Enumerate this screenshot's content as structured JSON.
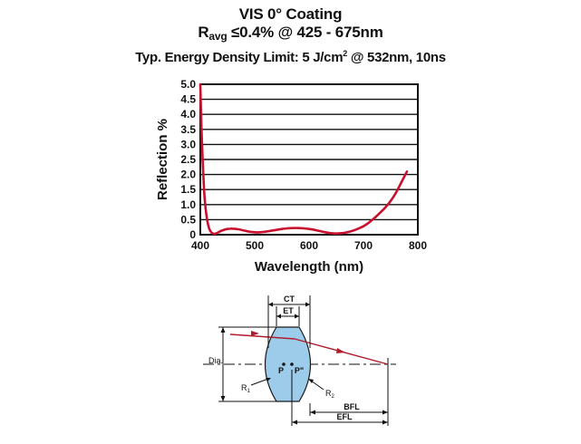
{
  "header": {
    "title": "VIS 0° Coating",
    "ravg_r": "R",
    "ravg_sub": "avg",
    "ravg_rest": " ≤0.4% @ 425 - 675nm",
    "energy_text": "Typ. Energy Density Limit: 5 J/cm",
    "energy_sup": "2",
    "energy_rest": " @ 532nm, 10ns"
  },
  "chart_data": {
    "type": "line",
    "xlabel": "Wavelength (nm)",
    "ylabel": "Reflection %",
    "xlim": [
      400,
      800
    ],
    "ylim": [
      0,
      5
    ],
    "x_ticks": [
      "400",
      "500",
      "600",
      "700",
      "800"
    ],
    "y_ticks": [
      "0",
      "0.5",
      "1.0",
      "1.5",
      "2.0",
      "2.5",
      "3.0",
      "3.5",
      "4.0",
      "4.5",
      "5.0"
    ],
    "grid": "horizontal",
    "series": [
      {
        "name": "Reflection",
        "color": "#c8102e",
        "x": [
          400,
          402,
          405,
          408,
          412,
          416,
          420,
          425,
          430,
          440,
          450,
          460,
          470,
          480,
          490,
          500,
          510,
          520,
          530,
          540,
          550,
          560,
          570,
          580,
          590,
          600,
          610,
          620,
          630,
          640,
          650,
          660,
          670,
          680,
          690,
          700,
          710,
          720,
          730,
          740,
          750,
          760,
          770,
          780
        ],
        "values": [
          5.0,
          3.6,
          2.2,
          1.2,
          0.55,
          0.22,
          0.08,
          0.03,
          0.05,
          0.14,
          0.19,
          0.2,
          0.18,
          0.14,
          0.1,
          0.08,
          0.08,
          0.1,
          0.13,
          0.16,
          0.19,
          0.21,
          0.22,
          0.22,
          0.21,
          0.19,
          0.16,
          0.12,
          0.08,
          0.05,
          0.04,
          0.05,
          0.08,
          0.13,
          0.2,
          0.28,
          0.4,
          0.55,
          0.72,
          0.9,
          1.12,
          1.4,
          1.75,
          2.1
        ]
      }
    ]
  },
  "diagram": {
    "labels": {
      "ct": "CT",
      "et": "ET",
      "dia": "Dia.",
      "p": "P",
      "p_prime": "P\"",
      "r1_r": "R",
      "r1_sub": "1",
      "r2_r": "R",
      "r2_sub": "2",
      "bfl": "BFL",
      "efl": "EFL"
    },
    "colors": {
      "lens_fill": "#9dcbea",
      "lens_stroke": "#1a1a1a",
      "ray": "#b01c2e",
      "dim": "#111111"
    }
  }
}
